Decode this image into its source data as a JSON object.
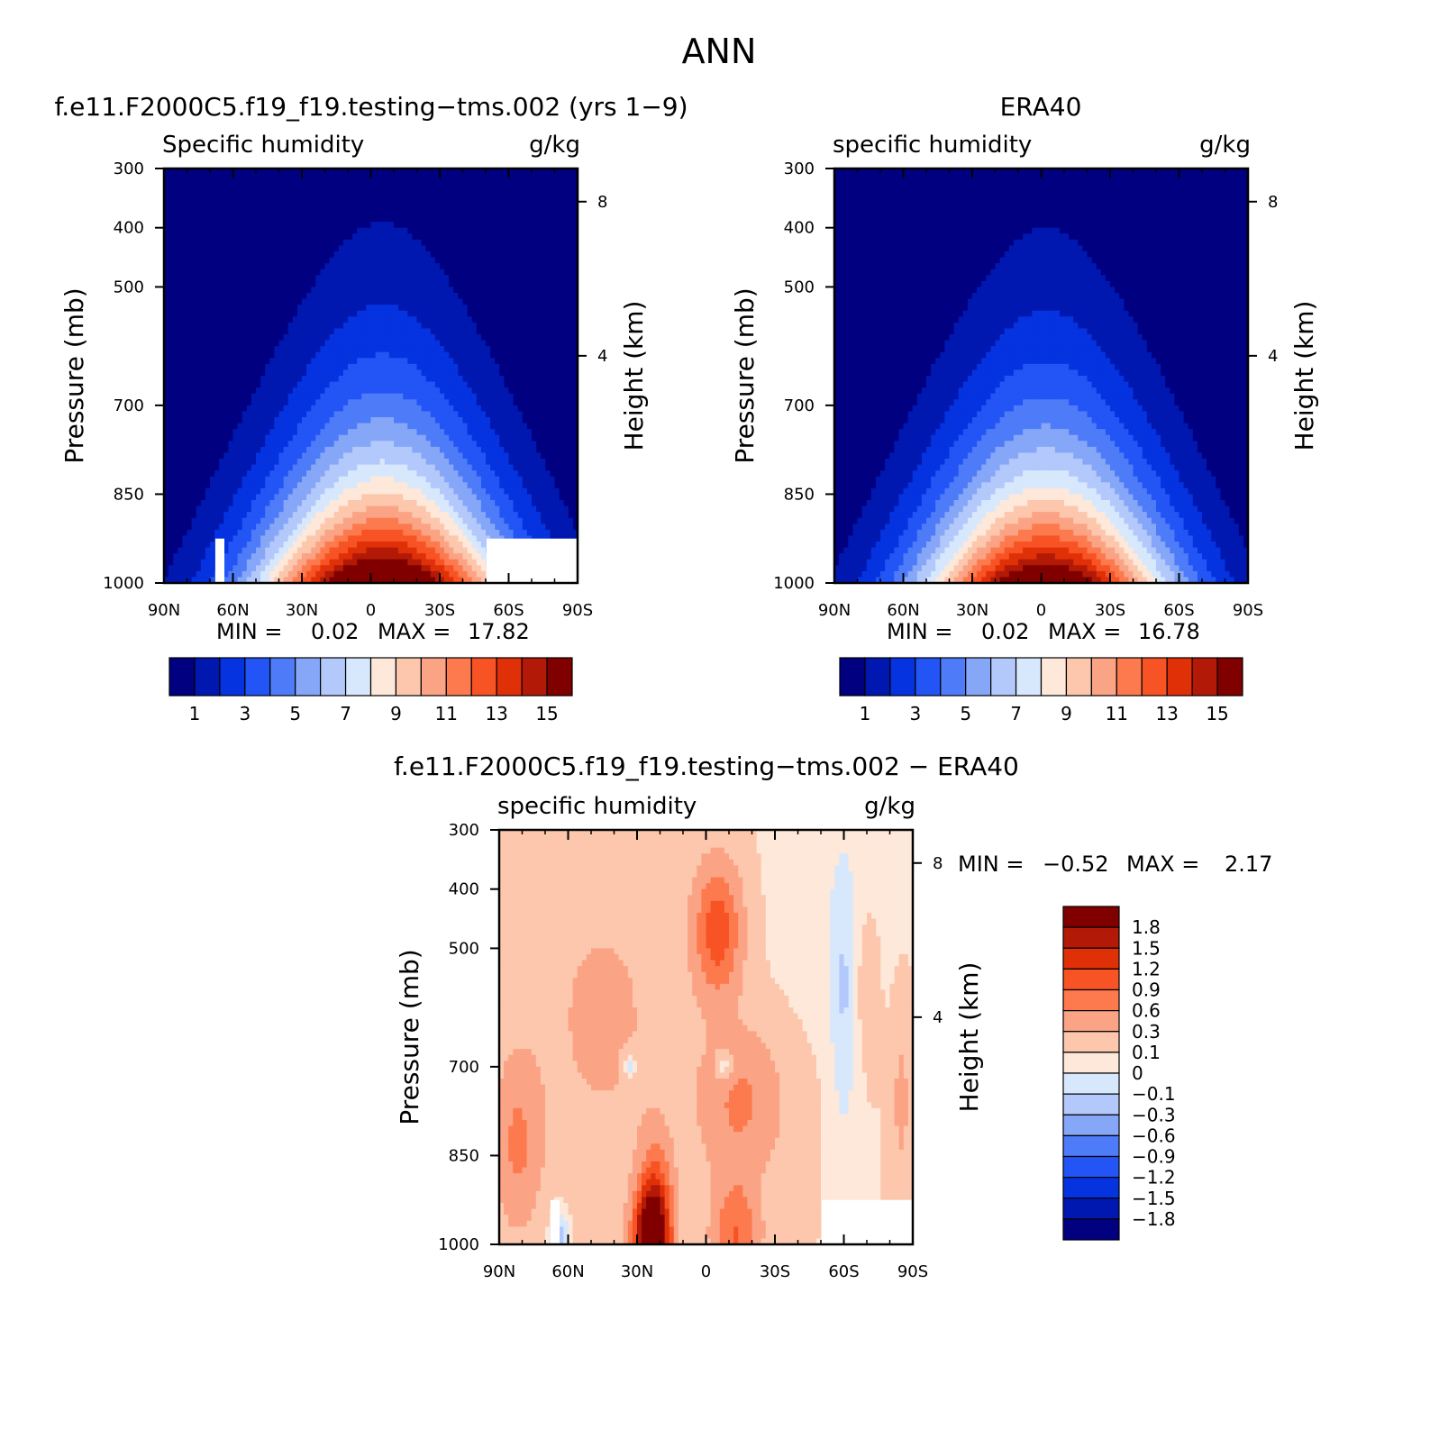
{
  "page_title": "ANN",
  "chart_data": [
    {
      "type": "heatmap",
      "panel": "model",
      "title": "f.e11.F2000C5.f19_f19.testing−tms.002 (yrs 1−9)",
      "field_label": "Specific humidity",
      "units": "g/kg",
      "ylabel": "Pressure (mb)",
      "y2label": "Height (km)",
      "x_ticks": [
        "90N",
        "60N",
        "30N",
        "0",
        "30S",
        "60S",
        "90S"
      ],
      "y_ticks": [
        "300",
        "400",
        "500",
        "700",
        "850",
        "1000"
      ],
      "y2_ticks": [
        "8",
        "4"
      ],
      "min_label": "MIN =",
      "min": "0.02",
      "max_label": "MAX =",
      "max": "17.82",
      "levels": [
        1,
        2,
        3,
        4,
        5,
        6,
        7,
        8,
        9,
        10,
        11,
        12,
        13,
        14,
        15
      ],
      "colorbar_labels": [
        "1",
        "3",
        "5",
        "7",
        "9",
        "11",
        "13",
        "15"
      ],
      "colors": [
        "#000080",
        "#0018b0",
        "#0533e0",
        "#2354f5",
        "#4e7cf8",
        "#86a6f8",
        "#b3c8fb",
        "#d7e8fd",
        "#fde8d9",
        "#fcc7ad",
        "#fba385",
        "#fc7a4e",
        "#f85324",
        "#e03008",
        "#b21a07",
        "#800000"
      ],
      "peak_value": 17.8,
      "peak_pressure_mb": 1000,
      "peak_lat": -5
    },
    {
      "type": "heatmap",
      "panel": "obs",
      "title": "ERA40",
      "field_label": "specific humidity",
      "units": "g/kg",
      "ylabel": "Pressure (mb)",
      "y2label": "Height (km)",
      "x_ticks": [
        "90N",
        "60N",
        "30N",
        "0",
        "30S",
        "60S",
        "90S"
      ],
      "y_ticks": [
        "300",
        "400",
        "500",
        "700",
        "850",
        "1000"
      ],
      "y2_ticks": [
        "8",
        "4"
      ],
      "min_label": "MIN =",
      "min": "0.02",
      "max_label": "MAX =",
      "max": "16.78",
      "levels": [
        1,
        2,
        3,
        4,
        5,
        6,
        7,
        8,
        9,
        10,
        11,
        12,
        13,
        14,
        15
      ],
      "colorbar_labels": [
        "1",
        "3",
        "5",
        "7",
        "9",
        "11",
        "13",
        "15"
      ],
      "colors": [
        "#000080",
        "#0018b0",
        "#0533e0",
        "#2354f5",
        "#4e7cf8",
        "#86a6f8",
        "#b3c8fb",
        "#d7e8fd",
        "#fde8d9",
        "#fcc7ad",
        "#fba385",
        "#fc7a4e",
        "#f85324",
        "#e03008",
        "#b21a07",
        "#800000"
      ],
      "peak_value": 16.8,
      "peak_pressure_mb": 1000,
      "peak_lat": -2
    },
    {
      "type": "heatmap",
      "panel": "diff",
      "title": "f.e11.F2000C5.f19_f19.testing−tms.002 − ERA40",
      "field_label": "specific humidity",
      "units": "g/kg",
      "ylabel": "Pressure (mb)",
      "y2label": "Height (km)",
      "x_ticks": [
        "90N",
        "60N",
        "30N",
        "0",
        "30S",
        "60S",
        "90S"
      ],
      "y_ticks": [
        "300",
        "400",
        "500",
        "700",
        "850",
        "1000"
      ],
      "y2_ticks": [
        "8",
        "4"
      ],
      "min_label": "MIN =",
      "min": "−0.52",
      "max_label": "MAX =",
      "max": "2.17",
      "levels": [
        -1.8,
        -1.5,
        -1.2,
        -0.9,
        -0.6,
        -0.3,
        -0.1,
        0,
        0.1,
        0.3,
        0.6,
        0.9,
        1.2,
        1.5,
        1.8
      ],
      "colorbar_labels": [
        "1.8",
        "1.5",
        "1.2",
        "0.9",
        "0.6",
        "0.3",
        "0.1",
        "0",
        "−0.1",
        "−0.3",
        "−0.6",
        "−0.9",
        "−1.2",
        "−1.5",
        "−1.8"
      ],
      "colors": [
        "#000080",
        "#0018b0",
        "#0533e0",
        "#2354f5",
        "#4e7cf8",
        "#86a6f8",
        "#b3c8fb",
        "#d7e8fd",
        "#fde8d9",
        "#fcc7ad",
        "#fba385",
        "#fc7a4e",
        "#f85324",
        "#e03008",
        "#b21a07",
        "#800000"
      ]
    }
  ]
}
